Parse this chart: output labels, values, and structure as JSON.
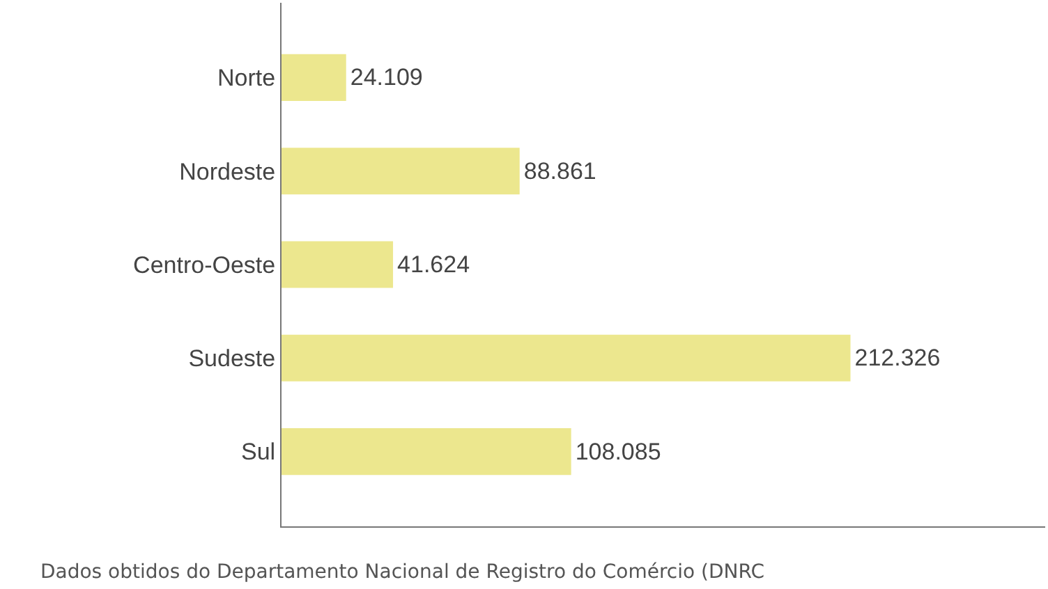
{
  "chart_data": {
    "type": "bar",
    "orientation": "horizontal",
    "categories": [
      "Norte",
      "Nordeste",
      "Centro-Oeste",
      "Sudeste",
      "Sul"
    ],
    "values": [
      24109,
      88861,
      41624,
      212326,
      108085
    ],
    "value_labels": [
      "24.109",
      "88.861",
      "41.624",
      "212.326",
      "108.085"
    ],
    "color": "#ece78e",
    "xlim": [
      0,
      285000
    ],
    "tick_labels": "y",
    "annotations": [
      "Dados obtidos do Departamento Nacional de Registro do Comércio (DNRC"
    ]
  }
}
